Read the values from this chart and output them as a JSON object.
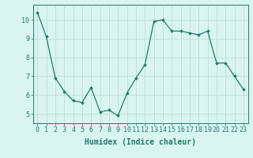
{
  "x": [
    0,
    1,
    2,
    3,
    4,
    5,
    6,
    7,
    8,
    9,
    10,
    11,
    12,
    13,
    14,
    15,
    16,
    17,
    18,
    19,
    20,
    21,
    22,
    23
  ],
  "y": [
    10.4,
    9.1,
    6.9,
    6.2,
    5.7,
    5.6,
    6.4,
    5.1,
    5.2,
    4.9,
    6.1,
    6.9,
    7.6,
    9.9,
    10.0,
    9.4,
    9.4,
    9.3,
    9.2,
    9.4,
    7.7,
    7.7,
    7.0,
    6.3
  ],
  "line_color": "#1f7a6e",
  "marker": "D",
  "marker_size": 1.8,
  "linewidth": 0.9,
  "bg_color": "#d9f5f0",
  "grid_color": "#c0ddd8",
  "xlabel": "Humidex (Indice chaleur)",
  "ylim": [
    4.5,
    10.8
  ],
  "xlim": [
    -0.5,
    23.5
  ],
  "yticks": [
    5,
    6,
    7,
    8,
    9,
    10
  ],
  "xticks": [
    0,
    1,
    2,
    3,
    4,
    5,
    6,
    7,
    8,
    9,
    10,
    11,
    12,
    13,
    14,
    15,
    16,
    17,
    18,
    19,
    20,
    21,
    22,
    23
  ],
  "tick_color": "#1f7a6e",
  "xlabel_fontsize": 7,
  "tick_fontsize": 6,
  "spine_color": "#1f7a6e"
}
